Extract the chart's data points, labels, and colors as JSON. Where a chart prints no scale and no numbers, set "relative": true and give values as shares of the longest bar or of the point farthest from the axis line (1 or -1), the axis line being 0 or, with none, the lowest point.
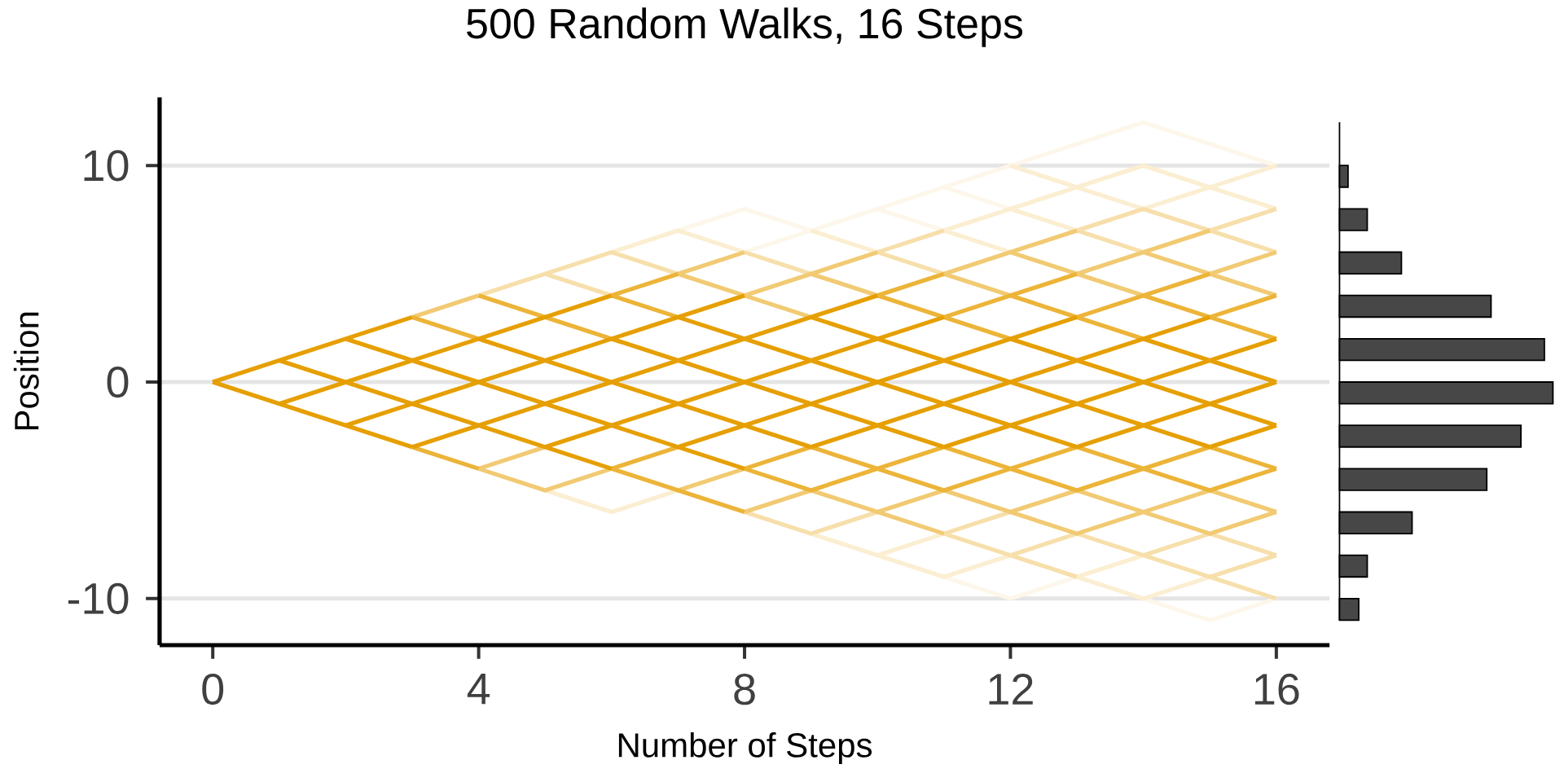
{
  "chart_data": [
    {
      "type": "line",
      "title": "500 Random Walks, 16 Steps",
      "xlabel": "Number of Steps",
      "ylabel": "Position",
      "xlim": [
        -0.8,
        16.8
      ],
      "ylim": [
        -12.15,
        13.15
      ],
      "xticks": [
        0,
        4,
        8,
        12,
        16
      ],
      "yticks": [
        -10,
        0,
        10
      ],
      "grid": "y",
      "series": [
        {
          "color": "#fdf7eb",
          "x": [
            7,
            8,
            9
          ],
          "values": [
            7,
            8,
            7
          ]
        },
        {
          "color": "#fdf7eb",
          "x": [
            8,
            14,
            16
          ],
          "values": [
            6,
            12,
            10
          ]
        },
        {
          "color": "#fdf7eb",
          "x": [
            11,
            12,
            13
          ],
          "values": [
            -9,
            -10,
            -9
          ]
        },
        {
          "color": "#fdf7eb",
          "x": [
            14,
            15,
            16
          ],
          "values": [
            -10,
            -11,
            -10
          ]
        },
        {
          "color": "#fdf7eb",
          "x": [
            10,
            11
          ],
          "values": [
            8,
            7
          ]
        },
        {
          "color": "#fdf7eb",
          "x": [
            11,
            12
          ],
          "values": [
            9,
            8
          ]
        },
        {
          "color": "#fbeed1",
          "x": [
            6,
            7,
            8
          ],
          "values": [
            6,
            7,
            6
          ]
        },
        {
          "color": "#fbeed1",
          "x": [
            5,
            6,
            7
          ],
          "values": [
            -5,
            -6,
            -5
          ]
        },
        {
          "color": "#fbeed1",
          "x": [
            9,
            11,
            12
          ],
          "values": [
            -7,
            -9,
            -8
          ]
        },
        {
          "color": "#fbeed1",
          "x": [
            11,
            14,
            16
          ],
          "values": [
            7,
            10,
            8
          ]
        },
        {
          "color": "#fbeed1",
          "x": [
            12,
            14,
            16
          ],
          "values": [
            10,
            8,
            10
          ]
        },
        {
          "color": "#fbeed1",
          "x": [
            10,
            11
          ],
          "values": [
            -8,
            -7
          ]
        },
        {
          "color": "#fbeed1",
          "x": [
            13,
            14,
            15
          ],
          "values": [
            -9,
            -10,
            -9
          ]
        },
        {
          "color": "#fbeed1",
          "x": [
            13,
            14
          ],
          "values": [
            -9,
            -8
          ]
        },
        {
          "color": "#fbeed1",
          "x": [
            9,
            10
          ],
          "values": [
            7,
            6
          ]
        },
        {
          "color": "#fbeed1",
          "x": [
            11,
            12
          ],
          "values": [
            7,
            6
          ]
        },
        {
          "color": "#fbeed1",
          "x": [
            12,
            13
          ],
          "values": [
            8,
            7
          ]
        },
        {
          "color": "#f7dfab",
          "x": [
            4,
            6,
            7
          ],
          "values": [
            4,
            6,
            5
          ]
        },
        {
          "color": "#f7dfab",
          "x": [
            8,
            9,
            10
          ],
          "values": [
            -6,
            -7,
            -6
          ]
        },
        {
          "color": "#f7dfab",
          "x": [
            11,
            12
          ],
          "values": [
            -7,
            -6
          ]
        },
        {
          "color": "#f7dfab",
          "x": [
            11,
            13
          ],
          "values": [
            -7,
            -9
          ]
        },
        {
          "color": "#f7dfab",
          "x": [
            12,
            13,
            16
          ],
          "values": [
            -8,
            -7,
            -10
          ]
        },
        {
          "color": "#f7dfab",
          "x": [
            14,
            15,
            16
          ],
          "values": [
            -8,
            -7,
            -8
          ]
        },
        {
          "color": "#f7dfab",
          "x": [
            15,
            16
          ],
          "values": [
            -9,
            -8
          ]
        },
        {
          "color": "#f7dfab",
          "x": [
            5,
            6
          ],
          "values": [
            5,
            4
          ]
        },
        {
          "color": "#f7dfab",
          "x": [
            8,
            9
          ],
          "values": [
            6,
            5
          ]
        },
        {
          "color": "#f7dfab",
          "x": [
            10,
            11
          ],
          "values": [
            6,
            7
          ]
        },
        {
          "color": "#f7dfab",
          "x": [
            10,
            11
          ],
          "values": [
            6,
            5
          ]
        },
        {
          "color": "#f7dfab",
          "x": [
            13,
            14,
            16
          ],
          "values": [
            7,
            8,
            6
          ]
        },
        {
          "color": "#f7dfab",
          "x": [
            13,
            14
          ],
          "values": [
            7,
            6
          ]
        },
        {
          "color": "#f7dfab",
          "x": [
            15,
            16
          ],
          "values": [
            7,
            8
          ]
        },
        {
          "color": "#f1ca73",
          "x": [
            3,
            4
          ],
          "values": [
            3,
            4
          ]
        },
        {
          "color": "#f1ca73",
          "x": [
            7,
            8
          ],
          "values": [
            5,
            6
          ]
        },
        {
          "color": "#f1ca73",
          "x": [
            7,
            9
          ],
          "values": [
            5,
            3
          ]
        },
        {
          "color": "#f1ca73",
          "x": [
            8,
            10
          ],
          "values": [
            4,
            6
          ]
        },
        {
          "color": "#f1ca73",
          "x": [
            9,
            10
          ],
          "values": [
            5,
            4
          ]
        },
        {
          "color": "#f1ca73",
          "x": [
            11,
            13
          ],
          "values": [
            5,
            7
          ]
        },
        {
          "color": "#f1ca73",
          "x": [
            11,
            12
          ],
          "values": [
            5,
            4
          ]
        },
        {
          "color": "#f1ca73",
          "x": [
            12,
            14
          ],
          "values": [
            6,
            4
          ]
        },
        {
          "color": "#f1ca73",
          "x": [
            13,
            15
          ],
          "values": [
            5,
            7
          ]
        },
        {
          "color": "#f1ca73",
          "x": [
            14,
            16
          ],
          "values": [
            6,
            4
          ]
        },
        {
          "color": "#f1ca73",
          "x": [
            15,
            16
          ],
          "values": [
            5,
            6
          ]
        },
        {
          "color": "#f1ca73",
          "x": [
            4,
            5,
            6
          ],
          "values": [
            -4,
            -5,
            -4
          ]
        },
        {
          "color": "#f1ca73",
          "x": [
            4,
            5
          ],
          "values": [
            -4,
            -3
          ]
        },
        {
          "color": "#f1ca73",
          "x": [
            7,
            8
          ],
          "values": [
            -5,
            -4
          ]
        },
        {
          "color": "#f1ca73",
          "x": [
            8,
            9,
            11
          ],
          "values": [
            -6,
            -5,
            -7
          ]
        },
        {
          "color": "#f1ca73",
          "x": [
            10,
            11,
            13,
            15,
            16
          ],
          "values": [
            -6,
            -5,
            -7,
            -5,
            -6
          ]
        },
        {
          "color": "#f1ca73",
          "x": [
            12,
            13,
            15,
            16
          ],
          "values": [
            -6,
            -5,
            -7,
            -6
          ]
        },
        {
          "color": "#ecb438",
          "x": [
            3,
            4
          ],
          "values": [
            3,
            2
          ]
        },
        {
          "color": "#ecb438",
          "x": [
            4,
            6
          ],
          "values": [
            4,
            2
          ]
        },
        {
          "color": "#ecb438",
          "x": [
            6,
            7
          ],
          "values": [
            4,
            5
          ]
        },
        {
          "color": "#ecb438",
          "x": [
            6,
            7
          ],
          "values": [
            4,
            3
          ]
        },
        {
          "color": "#ecb438",
          "x": [
            10,
            11
          ],
          "values": [
            4,
            5
          ]
        },
        {
          "color": "#ecb438",
          "x": [
            10,
            12
          ],
          "values": [
            4,
            2
          ]
        },
        {
          "color": "#ecb438",
          "x": [
            11,
            13
          ],
          "values": [
            3,
            5
          ]
        },
        {
          "color": "#ecb438",
          "x": [
            12,
            14
          ],
          "values": [
            4,
            2
          ]
        },
        {
          "color": "#ecb438",
          "x": [
            13,
            15
          ],
          "values": [
            3,
            5
          ]
        },
        {
          "color": "#ecb438",
          "x": [
            14,
            16
          ],
          "values": [
            4,
            2
          ]
        },
        {
          "color": "#ecb438",
          "x": [
            15,
            16
          ],
          "values": [
            3,
            4
          ]
        },
        {
          "color": "#ecb438",
          "x": [
            3,
            4
          ],
          "values": [
            -3,
            -4
          ]
        },
        {
          "color": "#ecb438",
          "x": [
            6,
            7
          ],
          "values": [
            -4,
            -3
          ]
        },
        {
          "color": "#ecb438",
          "x": [
            6,
            8
          ],
          "values": [
            -4,
            -6
          ]
        },
        {
          "color": "#ecb438",
          "x": [
            8,
            9,
            11,
            13,
            15,
            16
          ],
          "values": [
            -4,
            -5,
            -3,
            -5,
            -3,
            -4
          ]
        },
        {
          "color": "#ecb438",
          "x": [
            8,
            9,
            11,
            13,
            15,
            16
          ],
          "values": [
            -4,
            -3,
            -5,
            -3,
            -5,
            -4
          ]
        },
        {
          "color": "#e69f00",
          "x": [
            0,
            3
          ],
          "values": [
            0,
            3
          ]
        },
        {
          "color": "#e69f00",
          "x": [
            1,
            6
          ],
          "values": [
            -1,
            4
          ]
        },
        {
          "color": "#e69f00",
          "x": [
            2,
            8
          ],
          "values": [
            -2,
            4
          ]
        },
        {
          "color": "#e69f00",
          "x": [
            3,
            10
          ],
          "values": [
            -3,
            4
          ]
        },
        {
          "color": "#e69f00",
          "x": [
            5,
            11
          ],
          "values": [
            -3,
            3
          ]
        },
        {
          "color": "#e69f00",
          "x": [
            7,
            13
          ],
          "values": [
            -3,
            3
          ]
        },
        {
          "color": "#e69f00",
          "x": [
            9,
            15
          ],
          "values": [
            -3,
            3
          ]
        },
        {
          "color": "#e69f00",
          "x": [
            11,
            16
          ],
          "values": [
            -3,
            2
          ]
        },
        {
          "color": "#e69f00",
          "x": [
            13,
            16
          ],
          "values": [
            -3,
            0
          ]
        },
        {
          "color": "#e69f00",
          "x": [
            15,
            16
          ],
          "values": [
            -3,
            -2
          ]
        },
        {
          "color": "#e69f00",
          "x": [
            0,
            3
          ],
          "values": [
            0,
            -3
          ]
        },
        {
          "color": "#e69f00",
          "x": [
            1,
            6
          ],
          "values": [
            1,
            -4
          ]
        },
        {
          "color": "#e69f00",
          "x": [
            2,
            8
          ],
          "values": [
            2,
            -4
          ]
        },
        {
          "color": "#e69f00",
          "x": [
            4,
            9
          ],
          "values": [
            2,
            -3
          ]
        },
        {
          "color": "#e69f00",
          "x": [
            6,
            11
          ],
          "values": [
            2,
            -3
          ]
        },
        {
          "color": "#e69f00",
          "x": [
            7,
            13
          ],
          "values": [
            3,
            -3
          ]
        },
        {
          "color": "#e69f00",
          "x": [
            9,
            15
          ],
          "values": [
            3,
            -3
          ]
        },
        {
          "color": "#e69f00",
          "x": [
            12,
            16
          ],
          "values": [
            2,
            -2
          ]
        },
        {
          "color": "#e69f00",
          "x": [
            14,
            16
          ],
          "values": [
            2,
            0
          ]
        }
      ]
    },
    {
      "type": "bar",
      "orientation": "horizontal",
      "relative": true,
      "color": "#474747",
      "categories": [
        null,
        null,
        null,
        null,
        null,
        null,
        null,
        null,
        null,
        null,
        null
      ],
      "values": [
        0.04,
        0.13,
        0.29,
        0.71,
        0.96,
        1,
        0.85,
        0.69,
        0.34,
        0.13,
        0.09
      ]
    }
  ]
}
